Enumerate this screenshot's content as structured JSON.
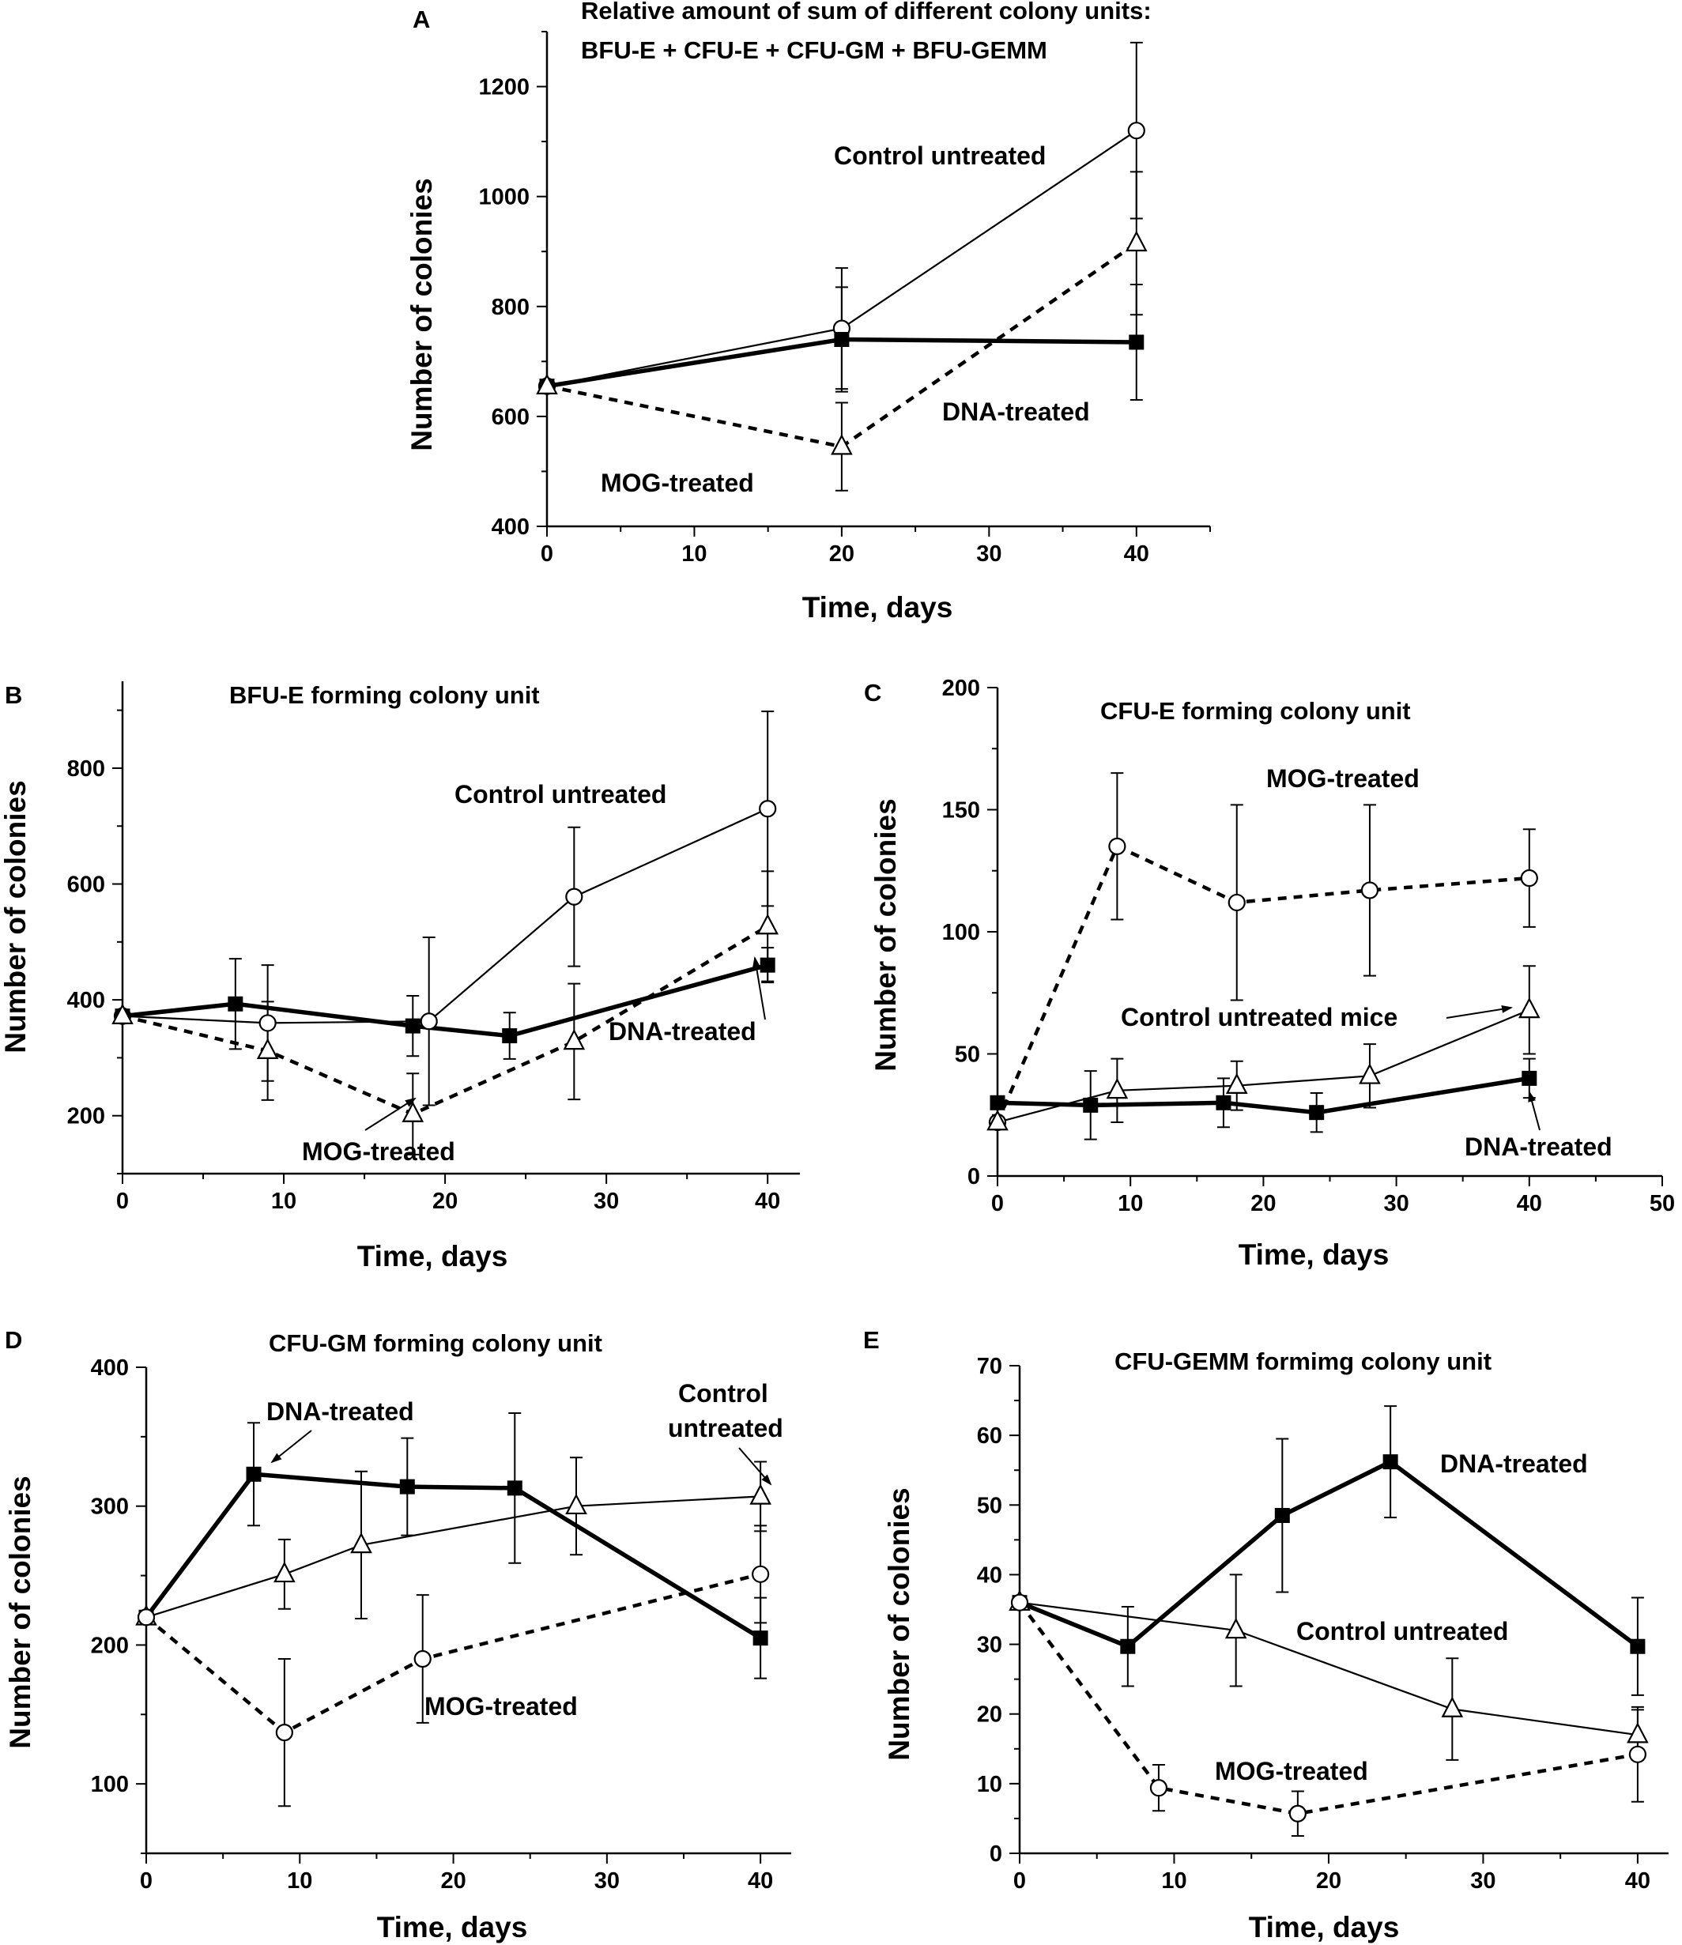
{
  "figure": {
    "panels": [
      {
        "letter": "A",
        "title_lines": [
          "Relative amount of sum of different colony units:",
          "BFU-E + CFU-E + CFU-GM + BFU-GEMM"
        ],
        "xlabel": "Time, days",
        "ylabel": "Number of colonies",
        "annotations": [
          "Control untreated",
          "DNA-treated",
          "MOG-treated"
        ]
      },
      {
        "letter": "B",
        "title_lines": [
          "BFU-E forming colony unit"
        ],
        "xlabel": "Time, days",
        "ylabel": "Number of colonies",
        "annotations": [
          "Control untreated",
          "DNA-treated",
          "MOG-treated"
        ]
      },
      {
        "letter": "C",
        "title_lines": [
          "CFU-E forming colony unit"
        ],
        "xlabel": "Time, days",
        "ylabel": "Number of colonies",
        "annotations": [
          "MOG-treated",
          "Control untreated mice",
          "DNA-treated"
        ]
      },
      {
        "letter": "D",
        "title_lines": [
          "CFU-GM forming colony  unit"
        ],
        "xlabel": "Time, days",
        "ylabel": "Number of colonies",
        "annotations": [
          "DNA-treated",
          "Control",
          "untreated",
          "MOG-treated"
        ]
      },
      {
        "letter": "E",
        "title_lines": [
          "CFU-GEMM formimg  colony unit"
        ],
        "xlabel": "Time, days",
        "ylabel": "Number of colonies",
        "annotations": [
          "DNA-treated",
          "Control untreated",
          "MOG-treated"
        ]
      }
    ]
  },
  "chart_data": [
    {
      "panel": "A",
      "type": "line",
      "title": "Relative amount of sum of different colony units: BFU-E + CFU-E + CFU-GM + BFU-GEMM",
      "xlabel": "Time, days",
      "ylabel": "Number of colonies",
      "xlim": [
        0,
        45
      ],
      "ylim": [
        400,
        1300
      ],
      "xticks": [
        0,
        10,
        20,
        30,
        40
      ],
      "yticks": [
        400,
        600,
        800,
        1000,
        1200
      ],
      "grid": false,
      "series": [
        {
          "name": "Control untreated",
          "marker": "open-circle",
          "line": "thin-solid",
          "points": [
            {
              "x": 0,
              "y": 655
            },
            {
              "x": 20,
              "y": 760,
              "err": 110
            },
            {
              "x": 40,
              "y": 1120,
              "err": 160
            }
          ]
        },
        {
          "name": "DNA-treated",
          "marker": "filled-square",
          "line": "thick-solid",
          "points": [
            {
              "x": 0,
              "y": 655
            },
            {
              "x": 20,
              "y": 740,
              "err": 95
            },
            {
              "x": 40,
              "y": 735,
              "err": 105
            }
          ]
        },
        {
          "name": "MOG-treated",
          "marker": "open-triangle",
          "line": "dashed",
          "points": [
            {
              "x": 0,
              "y": 655
            },
            {
              "x": 20,
              "y": 545,
              "err": 80
            },
            {
              "x": 40,
              "y": 915,
              "err": 130
            }
          ]
        }
      ]
    },
    {
      "panel": "B",
      "type": "line",
      "title": "BFU-E forming colony unit",
      "xlabel": "Time, days",
      "ylabel": "Number of colonies",
      "xlim": [
        0,
        42
      ],
      "ylim": [
        100,
        950
      ],
      "xticks": [
        0,
        10,
        20,
        30,
        40
      ],
      "yticks": [
        200,
        400,
        600,
        800
      ],
      "grid": false,
      "series": [
        {
          "name": "Control untreated",
          "marker": "open-circle",
          "line": "thin-solid",
          "points": [
            {
              "x": 0,
              "y": 372
            },
            {
              "x": 9,
              "y": 360,
              "err": 100
            },
            {
              "x": 19,
              "y": 363,
              "err": 145
            },
            {
              "x": 28,
              "y": 578,
              "err": 120
            },
            {
              "x": 40,
              "y": 730,
              "err": 168
            }
          ]
        },
        {
          "name": "DNA-treated",
          "marker": "filled-square",
          "line": "thick-solid",
          "points": [
            {
              "x": 0,
              "y": 372
            },
            {
              "x": 7,
              "y": 393,
              "err": 78
            },
            {
              "x": 18,
              "y": 355,
              "err": 52
            },
            {
              "x": 24,
              "y": 338,
              "err": 40
            },
            {
              "x": 40,
              "y": 460,
              "err": 30
            }
          ]
        },
        {
          "name": "MOG-treated",
          "marker": "open-triangle",
          "line": "dashed",
          "points": [
            {
              "x": 0,
              "y": 372
            },
            {
              "x": 9,
              "y": 312,
              "err": 85
            },
            {
              "x": 18,
              "y": 203,
              "err": 70
            },
            {
              "x": 28,
              "y": 328,
              "err": 100
            },
            {
              "x": 40,
              "y": 527,
              "err": 95
            }
          ]
        }
      ]
    },
    {
      "panel": "C",
      "type": "line",
      "title": "CFU-E forming colony unit",
      "xlabel": "Time, days",
      "ylabel": "Number of colonies",
      "xlim": [
        0,
        50
      ],
      "ylim": [
        0,
        200
      ],
      "xticks": [
        0,
        10,
        20,
        30,
        40,
        50
      ],
      "yticks": [
        0,
        50,
        100,
        150,
        200
      ],
      "grid": false,
      "series": [
        {
          "name": "MOG-treated",
          "marker": "open-circle",
          "line": "dashed",
          "points": [
            {
              "x": 0,
              "y": 22
            },
            {
              "x": 9,
              "y": 135,
              "err": 30
            },
            {
              "x": 18,
              "y": 112,
              "err": 40
            },
            {
              "x": 28,
              "y": 117,
              "err": 35
            },
            {
              "x": 40,
              "y": 122,
              "err": 20
            }
          ]
        },
        {
          "name": "Control untreated mice",
          "marker": "open-triangle",
          "line": "thin-solid",
          "points": [
            {
              "x": 0,
              "y": 22
            },
            {
              "x": 9,
              "y": 35,
              "err": 13
            },
            {
              "x": 18,
              "y": 37,
              "err": 10
            },
            {
              "x": 28,
              "y": 41,
              "err": 13
            },
            {
              "x": 40,
              "y": 68,
              "err": 18
            }
          ]
        },
        {
          "name": "DNA-treated",
          "marker": "filled-square",
          "line": "thick-solid",
          "points": [
            {
              "x": 0,
              "y": 30
            },
            {
              "x": 7,
              "y": 29,
              "err": 14
            },
            {
              "x": 17,
              "y": 30,
              "err": 10
            },
            {
              "x": 24,
              "y": 26,
              "err": 8
            },
            {
              "x": 40,
              "y": 40,
              "err": 8
            }
          ]
        }
      ]
    },
    {
      "panel": "D",
      "type": "line",
      "title": "CFU-GM forming colony  unit",
      "xlabel": "Time, days",
      "ylabel": "Number of colonies",
      "xlim": [
        0,
        42
      ],
      "ylim": [
        50,
        400
      ],
      "xticks": [
        0,
        10,
        20,
        30,
        40
      ],
      "yticks": [
        100,
        200,
        300,
        400
      ],
      "grid": false,
      "series": [
        {
          "name": "DNA-treated",
          "marker": "filled-square",
          "line": "thick-solid",
          "points": [
            {
              "x": 0,
              "y": 220
            },
            {
              "x": 7,
              "y": 323,
              "err": 37
            },
            {
              "x": 17,
              "y": 314,
              "err": 35
            },
            {
              "x": 24,
              "y": 313,
              "err": 54
            },
            {
              "x": 40,
              "y": 205,
              "err": 29
            }
          ]
        },
        {
          "name": "Control untreated",
          "marker": "open-triangle",
          "line": "thin-solid",
          "points": [
            {
              "x": 0,
              "y": 220
            },
            {
              "x": 9,
              "y": 251,
              "err": 25
            },
            {
              "x": 14,
              "y": 272,
              "err": 53
            },
            {
              "x": 28,
              "y": 300,
              "err": 35
            },
            {
              "x": 40,
              "y": 307,
              "err": 25
            }
          ]
        },
        {
          "name": "MOG-treated",
          "marker": "open-circle",
          "line": "dashed",
          "points": [
            {
              "x": 0,
              "y": 220
            },
            {
              "x": 9,
              "y": 137,
              "err": 53
            },
            {
              "x": 18,
              "y": 190,
              "err": 46
            },
            {
              "x": 40,
              "y": 251,
              "err": 35
            }
          ]
        }
      ]
    },
    {
      "panel": "E",
      "type": "line",
      "title": "CFU-GEMM formimg  colony unit",
      "xlabel": "Time, days",
      "ylabel": "Number of colonies",
      "xlim": [
        0,
        42
      ],
      "ylim": [
        0,
        70
      ],
      "xticks": [
        0,
        10,
        20,
        30,
        40
      ],
      "yticks": [
        0,
        10,
        20,
        30,
        40,
        50,
        60,
        70
      ],
      "grid": false,
      "series": [
        {
          "name": "DNA-treated",
          "marker": "filled-square",
          "line": "thick-solid",
          "points": [
            {
              "x": 0,
              "y": 36
            },
            {
              "x": 7,
              "y": 29.7,
              "err": 5.7
            },
            {
              "x": 17,
              "y": 48.5,
              "err": 11
            },
            {
              "x": 24,
              "y": 56.2,
              "err": 8
            },
            {
              "x": 40,
              "y": 29.7,
              "err": 7
            }
          ]
        },
        {
          "name": "Control untreated",
          "marker": "open-triangle",
          "line": "thin-solid",
          "points": [
            {
              "x": 0,
              "y": 36
            },
            {
              "x": 14,
              "y": 32,
              "err": 8
            },
            {
              "x": 28,
              "y": 20.7,
              "err": 7.3
            },
            {
              "x": 40,
              "y": 17,
              "err": 3.6
            }
          ]
        },
        {
          "name": "MOG-treated",
          "marker": "open-circle",
          "line": "dashed",
          "points": [
            {
              "x": 0,
              "y": 36
            },
            {
              "x": 9,
              "y": 9.4,
              "err": 3.3
            },
            {
              "x": 18,
              "y": 5.7,
              "err": 3.2
            },
            {
              "x": 40,
              "y": 14.2,
              "err": 6.8
            }
          ]
        }
      ]
    }
  ]
}
